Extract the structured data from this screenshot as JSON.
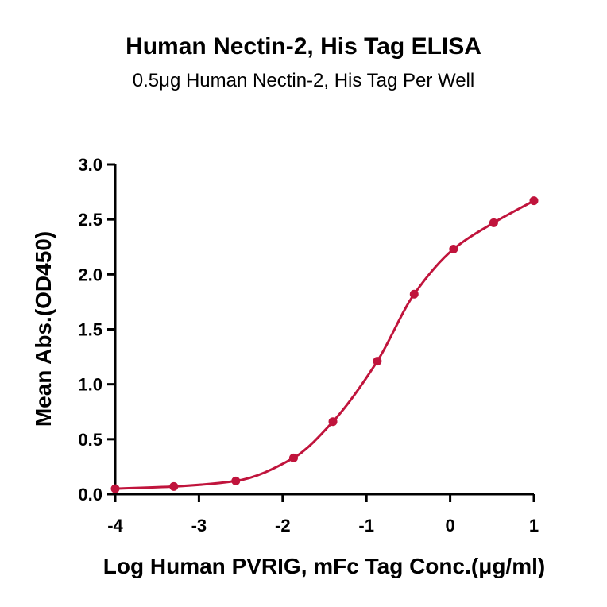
{
  "chart_data": {
    "type": "scatter",
    "title": "Human Nectin-2, His Tag ELISA",
    "subtitle": "0.5μg Human Nectin-2, His Tag Per Well",
    "xlabel": "Log Human PVRIG, mFc Tag Conc.(μg/ml)",
    "ylabel": "Mean Abs.(OD450)",
    "xlim": [
      -4,
      1
    ],
    "ylim": [
      0,
      3.0
    ],
    "x_ticks": [
      "-4",
      "-3",
      "-2",
      "-1",
      "0",
      "1"
    ],
    "y_ticks": [
      "0.0",
      "0.5",
      "1.0",
      "1.5",
      "2.0",
      "2.5",
      "3.0"
    ],
    "grid": false,
    "color": "#c0143c",
    "series": [
      {
        "x": [
          -4.0,
          -3.3,
          -2.56,
          -1.87,
          -1.4,
          -0.87,
          -0.43,
          0.04,
          0.52,
          1.0
        ],
        "y": [
          0.05,
          0.07,
          0.12,
          0.33,
          0.66,
          1.21,
          1.82,
          2.23,
          2.47,
          2.67
        ]
      }
    ]
  }
}
